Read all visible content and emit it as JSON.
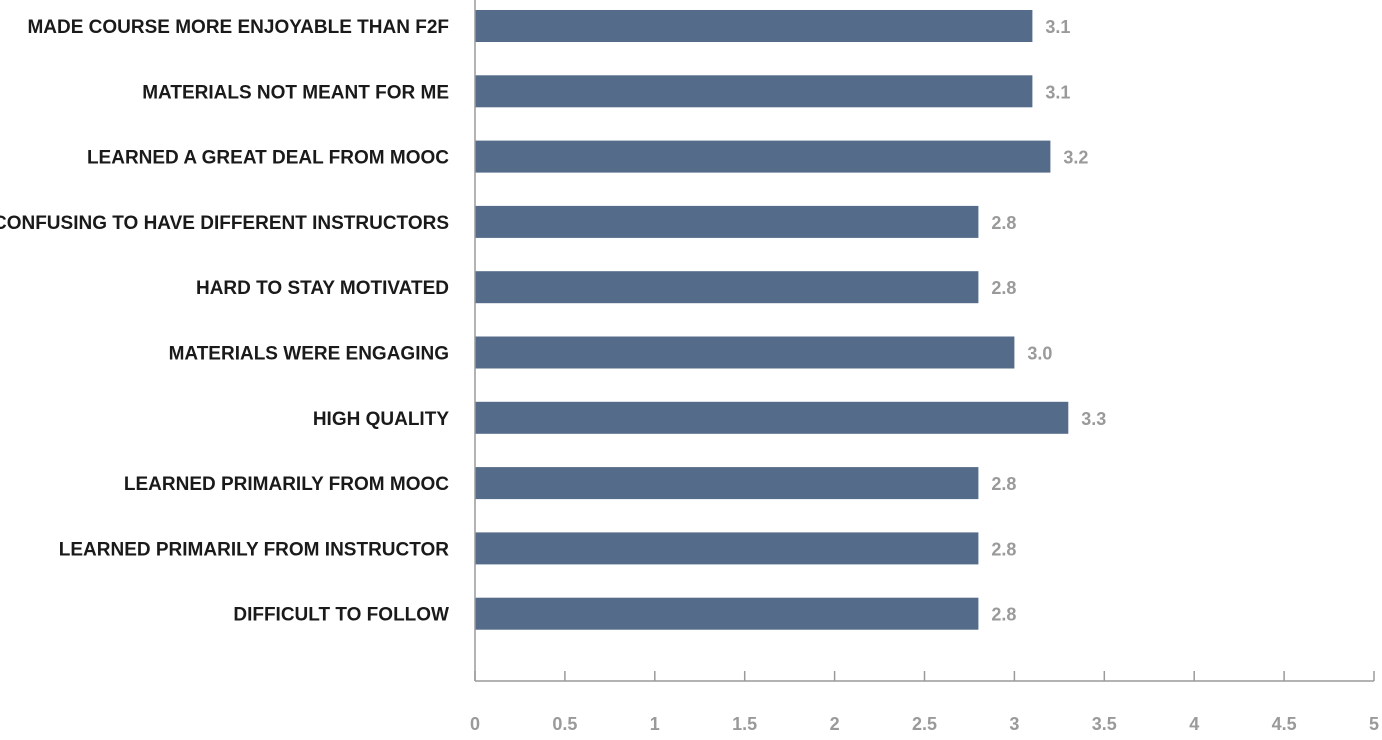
{
  "chart_data": {
    "type": "bar",
    "orientation": "horizontal",
    "categories": [
      "MADE COURSE MORE ENJOYABLE THAN F2F",
      "MATERIALS NOT MEANT FOR ME",
      "LEARNED A GREAT DEAL FROM MOOC",
      "CONFUSING TO HAVE DIFFERENT INSTRUCTORS",
      "HARD TO STAY MOTIVATED",
      "MATERIALS WERE ENGAGING",
      "HIGH QUALITY",
      "LEARNED PRIMARILY FROM MOOC",
      "LEARNED PRIMARILY FROM INSTRUCTOR",
      "DIFFICULT TO FOLLOW"
    ],
    "values": [
      3.1,
      3.1,
      3.2,
      2.8,
      2.8,
      3.0,
      3.3,
      2.8,
      2.8,
      2.8
    ],
    "value_labels": [
      "3.1",
      "3.1",
      "3.2",
      "2.8",
      "2.8",
      "3.0",
      "3.3",
      "2.8",
      "2.8",
      "2.8"
    ],
    "xticks": [
      "0",
      "0.5",
      "1",
      "1.5",
      "2",
      "2.5",
      "3",
      "3.5",
      "4",
      "4.5",
      "5"
    ],
    "xlim": [
      0,
      5
    ],
    "title": "",
    "xlabel": "",
    "ylabel": "",
    "grid": false,
    "legend": "none",
    "bar_color": "#546b89",
    "value_label_color": "#9a9a9a",
    "category_label_color": "#1a1a1a",
    "axis_color": "#9a9a9a"
  }
}
